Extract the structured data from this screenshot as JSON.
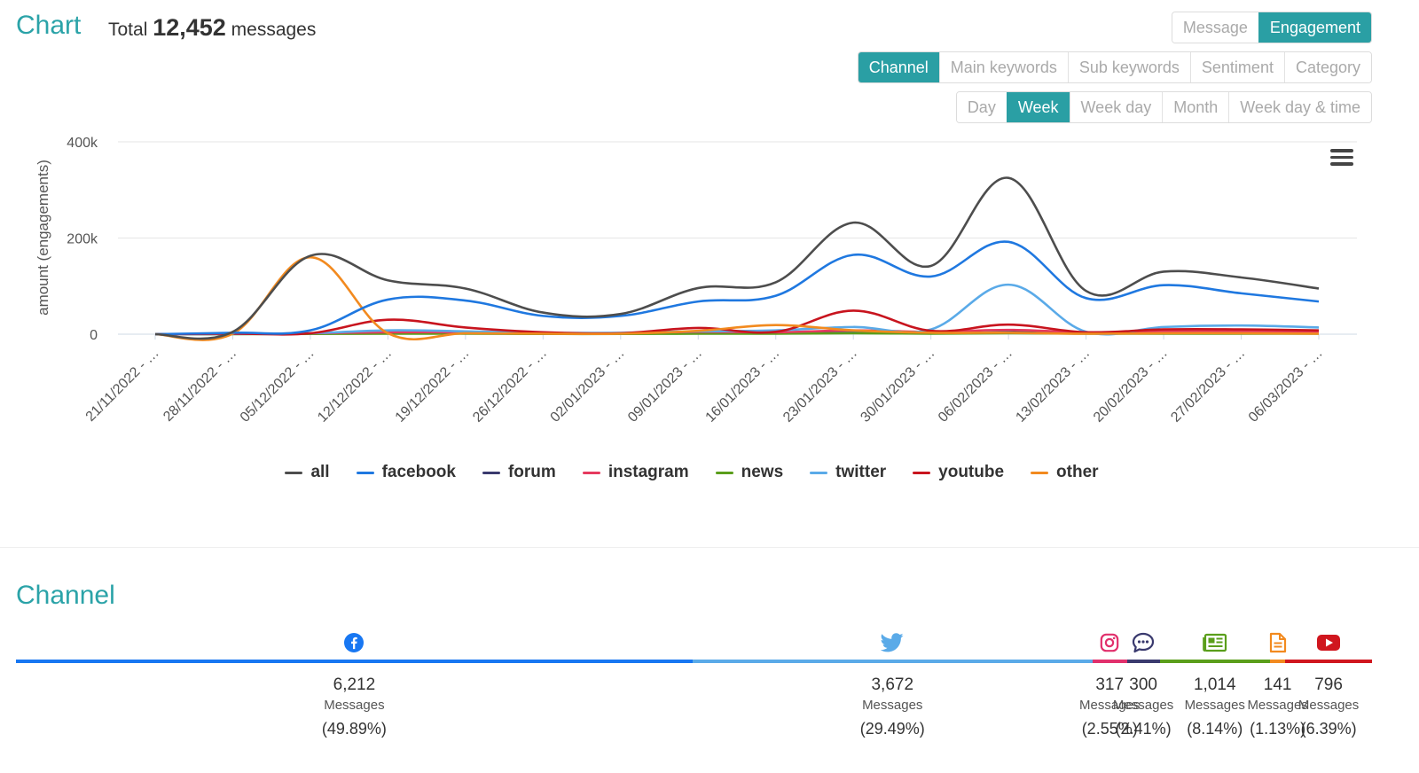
{
  "header": {
    "title": "Chart",
    "total_prefix": "Total",
    "total_count": "12,452",
    "total_suffix": "messages"
  },
  "metric_buttons": [
    {
      "label": "Message",
      "active": false
    },
    {
      "label": "Engagement",
      "active": true
    }
  ],
  "dimension_tabs": [
    {
      "label": "Channel",
      "active": true
    },
    {
      "label": "Main keywords",
      "active": false
    },
    {
      "label": "Sub keywords",
      "active": false
    },
    {
      "label": "Sentiment",
      "active": false
    },
    {
      "label": "Category",
      "active": false
    }
  ],
  "period_tabs": [
    {
      "label": "Day",
      "active": false
    },
    {
      "label": "Week",
      "active": true
    },
    {
      "label": "Week day",
      "active": false
    },
    {
      "label": "Month",
      "active": false
    },
    {
      "label": "Week day & time",
      "active": false
    }
  ],
  "chart_menu_icon": "hamburger-menu-icon",
  "chart_data": {
    "type": "line",
    "ylabel": "amount (engagements)",
    "ylim": [
      0,
      400000
    ],
    "yticks": [
      0,
      200000,
      400000
    ],
    "ytick_labels": [
      "0",
      "200k",
      "400k"
    ],
    "categories": [
      "21/11/2022 - …",
      "28/11/2022 - …",
      "05/12/2022 - …",
      "12/12/2022 - …",
      "19/12/2022 - …",
      "26/12/2022 - …",
      "02/01/2023 - …",
      "09/01/2023 - …",
      "16/01/2023 - …",
      "23/01/2023 - …",
      "30/01/2023 - …",
      "06/02/2023 - …",
      "13/02/2023 - …",
      "20/02/2023 - …",
      "27/02/2023 - …",
      "06/03/2023 - …"
    ],
    "grid": true,
    "legend_position": "bottom",
    "series": [
      {
        "name": "all",
        "color": "#4d4d4d",
        "values": [
          0,
          5000,
          163000,
          112000,
          95000,
          45000,
          42000,
          96000,
          108000,
          232000,
          142000,
          325000,
          90000,
          130000,
          118000,
          95000
        ]
      },
      {
        "name": "facebook",
        "color": "#1f78e0",
        "values": [
          0,
          3000,
          8000,
          72000,
          70000,
          38000,
          38000,
          68000,
          80000,
          165000,
          120000,
          192000,
          75000,
          102000,
          85000,
          68000
        ]
      },
      {
        "name": "forum",
        "color": "#3a3a6e",
        "values": [
          0,
          500,
          1000,
          2000,
          2000,
          1000,
          1000,
          2000,
          2000,
          3000,
          2000,
          4000,
          2000,
          3000,
          3000,
          2000
        ]
      },
      {
        "name": "instagram",
        "color": "#e63a5e",
        "values": [
          0,
          500,
          2000,
          4000,
          4000,
          2000,
          2000,
          5000,
          4000,
          8000,
          5000,
          9000,
          4000,
          6000,
          6000,
          5000
        ]
      },
      {
        "name": "news",
        "color": "#5a9e1b",
        "values": [
          0,
          0,
          500,
          1000,
          1000,
          500,
          500,
          1000,
          1000,
          2000,
          1000,
          2000,
          1000,
          1000,
          1000,
          1000
        ]
      },
      {
        "name": "twitter",
        "color": "#5aaae8",
        "values": [
          0,
          500,
          2000,
          8000,
          6000,
          3000,
          3000,
          6000,
          8000,
          15000,
          10000,
          103000,
          5000,
          15000,
          18000,
          14000
        ]
      },
      {
        "name": "youtube",
        "color": "#c8141e",
        "values": [
          0,
          1000,
          2000,
          30000,
          14000,
          4000,
          2000,
          13000,
          5000,
          49000,
          7000,
          20000,
          4000,
          10000,
          10000,
          8000
        ]
      },
      {
        "name": "other",
        "color": "#f28a1f",
        "values": [
          0,
          1000,
          160000,
          2000,
          2000,
          1000,
          1000,
          7000,
          19000,
          8000,
          3000,
          3000,
          1000,
          2000,
          2000,
          1000
        ]
      }
    ]
  },
  "channel_section": {
    "title": "Channel",
    "items": [
      {
        "name": "facebook",
        "icon": "facebook-icon",
        "color": "#1877f2",
        "count": "6,212",
        "unit": "Messages",
        "pct": "(49.89%)",
        "share": 0.4989
      },
      {
        "name": "twitter",
        "icon": "twitter-icon",
        "color": "#5aaae8",
        "count": "3,672",
        "unit": "Messages",
        "pct": "(29.49%)",
        "share": 0.2949
      },
      {
        "name": "instagram",
        "icon": "instagram-icon",
        "color": "#e1306c",
        "count": "317",
        "unit": "Messages",
        "pct": "(2.55%)",
        "share": 0.0255
      },
      {
        "name": "forum",
        "icon": "chat-bubble-icon",
        "color": "#3a3a6e",
        "count": "300",
        "unit": "Messages",
        "pct": "(2.41%)",
        "share": 0.0241
      },
      {
        "name": "news",
        "icon": "newspaper-icon",
        "color": "#5a9e1b",
        "count": "1,014",
        "unit": "Messages",
        "pct": "(8.14%)",
        "share": 0.0814
      },
      {
        "name": "other",
        "icon": "document-icon",
        "color": "#f28a1f",
        "count": "141",
        "unit": "Messages",
        "pct": "(1.13%)",
        "share": 0.0113
      },
      {
        "name": "youtube",
        "icon": "youtube-icon",
        "color": "#d0161e",
        "count": "796",
        "unit": "Messages",
        "pct": "(6.39%)",
        "share": 0.0639
      }
    ]
  }
}
